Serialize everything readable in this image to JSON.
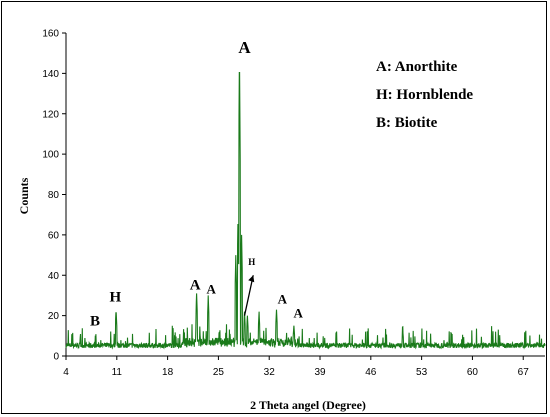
{
  "chart_data": {
    "type": "line",
    "title": "",
    "xlabel": "2 Theta angel (Degree)",
    "ylabel": "Counts",
    "xlim": [
      4,
      70
    ],
    "ylim": [
      0,
      160
    ],
    "xticks": [
      "4",
      "11",
      "18",
      "25",
      "32",
      "39",
      "46",
      "53",
      "60",
      "67"
    ],
    "xtick_values": [
      4,
      11,
      18,
      25,
      32,
      39,
      46,
      53,
      60,
      67
    ],
    "yticks": [
      0,
      20,
      40,
      60,
      80,
      100,
      120,
      140,
      160
    ],
    "grid": false,
    "series": [
      {
        "color": "#1a7a1a",
        "peaks": [
          {
            "x": 10.9,
            "y": 23
          },
          {
            "x": 22.0,
            "y": 31
          },
          {
            "x": 23.6,
            "y": 30
          },
          {
            "x": 27.4,
            "y": 50
          },
          {
            "x": 27.7,
            "y": 70
          },
          {
            "x": 27.9,
            "y": 151
          },
          {
            "x": 28.2,
            "y": 60
          },
          {
            "x": 28.6,
            "y": 22
          },
          {
            "x": 29.0,
            "y": 20
          },
          {
            "x": 30.6,
            "y": 22
          },
          {
            "x": 33.0,
            "y": 23
          },
          {
            "x": 35.4,
            "y": 15
          },
          {
            "x": 50.4,
            "y": 13
          }
        ]
      }
    ],
    "legend": {
      "placement": "top-right",
      "entries": [
        "A: Anorthite",
        "H: Hornblende",
        "B: Biotite"
      ]
    },
    "annotations": [
      {
        "text": "B",
        "x": 8.0,
        "y": 15
      },
      {
        "text": "H",
        "x": 10.8,
        "y": 27
      },
      {
        "text": "A",
        "x": 21.8,
        "y": 33
      },
      {
        "text": "A",
        "x": 24.0,
        "y": 31
      },
      {
        "text": "A",
        "x": 28.6,
        "y": 150
      },
      {
        "text": "H",
        "x": 29.6,
        "y": 45
      },
      {
        "text": "A",
        "x": 33.8,
        "y": 26
      },
      {
        "text": "A",
        "x": 36.0,
        "y": 19
      }
    ]
  }
}
